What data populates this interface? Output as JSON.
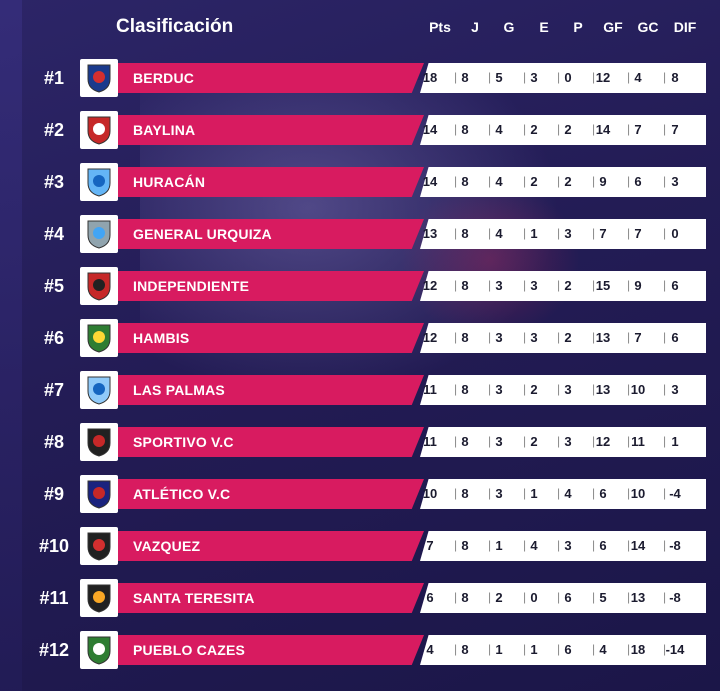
{
  "header": {
    "title": "Clasificación",
    "columns": [
      "Pts",
      "J",
      "G",
      "E",
      "P",
      "GF",
      "GC",
      "DIF"
    ]
  },
  "colors": {
    "background": "#231c55",
    "name_bar": "#d81b60",
    "stats_bar": "#ffffff"
  },
  "rows": [
    {
      "rank": "#1",
      "team": "BERDUC",
      "logo": "berduc-crest-icon",
      "stats": [
        "18",
        "8",
        "5",
        "3",
        "0",
        "12",
        "4",
        "8"
      ]
    },
    {
      "rank": "#2",
      "team": "BAYLINA",
      "logo": "baylina-crest-icon",
      "stats": [
        "14",
        "8",
        "4",
        "2",
        "2",
        "14",
        "7",
        "7"
      ]
    },
    {
      "rank": "#3",
      "team": "HURACÁN",
      "logo": "huracan-crest-icon",
      "stats": [
        "14",
        "8",
        "4",
        "2",
        "2",
        "9",
        "6",
        "3"
      ]
    },
    {
      "rank": "#4",
      "team": "GENERAL URQUIZA",
      "logo": "general-urquiza-crest-icon",
      "stats": [
        "13",
        "8",
        "4",
        "1",
        "3",
        "7",
        "7",
        "0"
      ]
    },
    {
      "rank": "#5",
      "team": "INDEPENDIENTE",
      "logo": "independiente-crest-icon",
      "stats": [
        "12",
        "8",
        "3",
        "3",
        "2",
        "15",
        "9",
        "6"
      ]
    },
    {
      "rank": "#6",
      "team": "HAMBIS",
      "logo": "hambis-crest-icon",
      "stats": [
        "12",
        "8",
        "3",
        "3",
        "2",
        "13",
        "7",
        "6"
      ]
    },
    {
      "rank": "#7",
      "team": "LAS PALMAS",
      "logo": "las-palmas-crest-icon",
      "stats": [
        "11",
        "8",
        "3",
        "2",
        "3",
        "13",
        "10",
        "3"
      ]
    },
    {
      "rank": "#8",
      "team": "SPORTIVO V.C",
      "logo": "sportivo-vc-crest-icon",
      "stats": [
        "11",
        "8",
        "3",
        "2",
        "3",
        "12",
        "11",
        "1"
      ]
    },
    {
      "rank": "#9",
      "team": "ATLÉTICO V.C",
      "logo": "atletico-vc-crest-icon",
      "stats": [
        "10",
        "8",
        "3",
        "1",
        "4",
        "6",
        "10",
        "-4"
      ]
    },
    {
      "rank": "#10",
      "team": "VAZQUEZ",
      "logo": "vazquez-crest-icon",
      "stats": [
        "7",
        "8",
        "1",
        "4",
        "3",
        "6",
        "14",
        "-8"
      ]
    },
    {
      "rank": "#11",
      "team": "SANTA TERESITA",
      "logo": "santa-teresita-crest-icon",
      "stats": [
        "6",
        "8",
        "2",
        "0",
        "6",
        "5",
        "13",
        "-8"
      ]
    },
    {
      "rank": "#12",
      "team": "PUEBLO CAZES",
      "logo": "pueblo-cazes-crest-icon",
      "stats": [
        "4",
        "8",
        "1",
        "1",
        "6",
        "4",
        "18",
        "-14"
      ]
    }
  ]
}
